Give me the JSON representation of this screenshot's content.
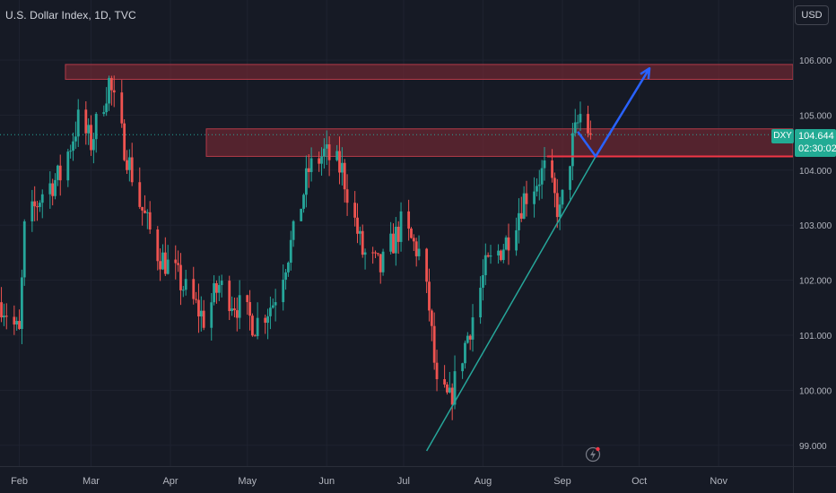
{
  "header": {
    "title": "U.S. Dollar Index, 1D, TVC",
    "currency": "USD"
  },
  "price_tag": {
    "symbol": "DXY",
    "price": "104.644",
    "countdown": "02:30:02"
  },
  "colors": {
    "background": "#161a25",
    "up": "#26a69a",
    "down": "#ef5350",
    "grid": "#1f2330",
    "zone": "#7a2a33",
    "zone_border": "#b33a48",
    "trendline": "#26a69a",
    "arrow": "#2962ff",
    "support_line": "#f23645"
  },
  "icons": {
    "flash": "lightning-icon"
  },
  "chart_data": {
    "type": "candlestick",
    "title": "U.S. Dollar Index, 1D, TVC",
    "xlabel": "",
    "ylabel": "",
    "x_ticks": [
      "Feb",
      "Mar",
      "Apr",
      "May",
      "Jun",
      "Jul",
      "Aug",
      "Sep",
      "Oct",
      "Nov"
    ],
    "y_ticks": [
      "99.000",
      "100.000",
      "101.000",
      "102.000",
      "103.000",
      "104.000",
      "105.000",
      "106.000"
    ],
    "ylim": [
      98.6,
      107.0
    ],
    "grid": true,
    "last_price": 104.644,
    "price_path": [
      [
        "2023-01-25",
        101.6
      ],
      [
        "2023-02-01",
        101.0
      ],
      [
        "2023-02-03",
        102.9
      ],
      [
        "2023-02-10",
        103.6
      ],
      [
        "2023-02-17",
        103.9
      ],
      [
        "2023-02-24",
        104.9
      ],
      [
        "2023-03-01",
        104.5
      ],
      [
        "2023-03-08",
        105.6
      ],
      [
        "2023-03-12",
        104.8
      ],
      [
        "2023-03-20",
        103.4
      ],
      [
        "2023-03-27",
        102.5
      ],
      [
        "2023-04-03",
        102.1
      ],
      [
        "2023-04-14",
        101.3
      ],
      [
        "2023-04-20",
        101.9
      ],
      [
        "2023-04-28",
        101.5
      ],
      [
        "2023-05-04",
        101.2
      ],
      [
        "2023-05-11",
        101.6
      ],
      [
        "2023-05-19",
        102.8
      ],
      [
        "2023-05-25",
        104.0
      ],
      [
        "2023-05-31",
        104.3
      ],
      [
        "2023-06-07",
        104.0
      ],
      [
        "2023-06-15",
        102.5
      ],
      [
        "2023-06-22",
        102.2
      ],
      [
        "2023-06-30",
        103.0
      ],
      [
        "2023-07-07",
        102.5
      ],
      [
        "2023-07-11",
        101.5
      ],
      [
        "2023-07-14",
        100.0
      ],
      [
        "2023-07-19",
        99.8
      ],
      [
        "2023-07-26",
        101.0
      ],
      [
        "2023-08-02",
        102.2
      ],
      [
        "2023-08-10",
        102.7
      ],
      [
        "2023-08-17",
        103.5
      ],
      [
        "2023-08-25",
        104.0
      ],
      [
        "2023-08-31",
        103.2
      ],
      [
        "2023-09-05",
        104.5
      ],
      [
        "2023-09-08",
        105.0
      ],
      [
        "2023-09-12",
        104.644
      ]
    ],
    "resistance_zones": [
      {
        "from": 105.65,
        "to": 105.92,
        "x_start": "2023-02-19",
        "x_end": "2023-11-30"
      },
      {
        "from": 104.25,
        "to": 104.75,
        "x_start": "2023-04-15",
        "x_end": "2023-11-30"
      }
    ],
    "support_line": {
      "value": 104.25,
      "x_start": "2023-08-26",
      "x_end": "2023-11-30"
    },
    "trendline": [
      [
        "2023-07-10",
        98.9
      ],
      [
        "2023-09-14",
        104.25
      ]
    ],
    "projection": [
      [
        "2023-09-07",
        104.7
      ],
      [
        "2023-09-14",
        104.25
      ],
      [
        "2023-10-05",
        105.85
      ]
    ]
  }
}
